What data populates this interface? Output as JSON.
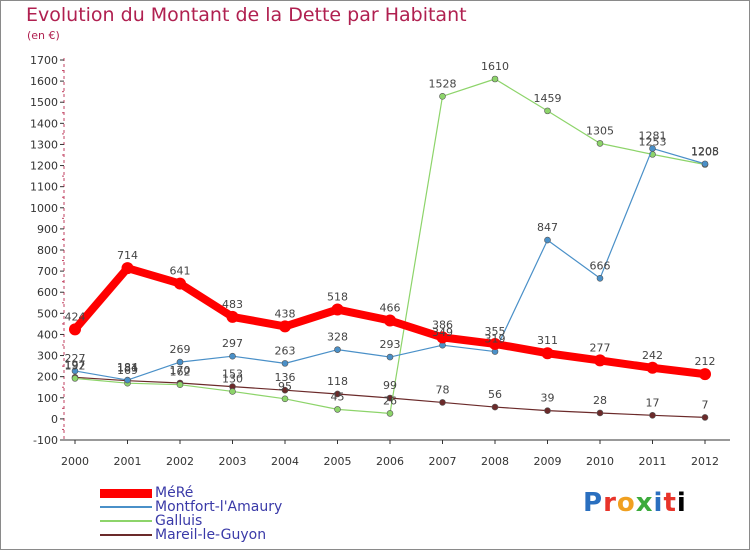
{
  "chart_data": {
    "type": "line",
    "title": "Evolution du Montant de la Dette par Habitant",
    "subtitle": "(en €)",
    "x": [
      "2000",
      "2001",
      "2002",
      "2003",
      "2004",
      "2005",
      "2006",
      "2007",
      "2008",
      "2009",
      "2010",
      "2011",
      "2012"
    ],
    "y_ticks": [
      "-100",
      "0",
      "100",
      "200",
      "300",
      "400",
      "500",
      "600",
      "700",
      "800",
      "900",
      "1000",
      "1100",
      "1200",
      "1300",
      "1400",
      "1500",
      "1600",
      "1700"
    ],
    "ylim": [
      -100,
      1700
    ],
    "grid": false,
    "legend_placement": "bottom-left",
    "series": [
      {
        "name": "MéRé",
        "color": "#ff0000",
        "values": [
          424,
          714,
          641,
          483,
          438,
          518,
          466,
          386,
          355,
          311,
          277,
          242,
          212
        ],
        "labels": [
          "424",
          "714",
          "641",
          "483",
          "438",
          "518",
          "466",
          "386",
          "355",
          "311",
          "277",
          "242",
          "212"
        ]
      },
      {
        "name": "Montfort-l'Amaury",
        "color": "#4a90c8",
        "values": [
          227,
          184,
          269,
          297,
          263,
          328,
          293,
          349,
          319,
          847,
          666,
          1281,
          1208
        ],
        "labels": [
          "227",
          "184",
          "269",
          "297",
          "263",
          "328",
          "293",
          "349",
          "319",
          "847",
          "666",
          "1281",
          "1208"
        ]
      },
      {
        "name": "Galluis",
        "color": "#8dd46a",
        "values": [
          192,
          169,
          162,
          130,
          95,
          45,
          26,
          1528,
          1610,
          1459,
          1305,
          1253,
          1205
        ],
        "labels": [
          "192",
          "169",
          "162",
          "130",
          "95",
          "45",
          "26",
          "1528",
          "1610",
          "1459",
          "1305",
          "1253",
          "1205"
        ]
      },
      {
        "name": "Mareil-le-Guyon",
        "color": "#6b2a2a",
        "values": [
          197,
          181,
          170,
          153,
          136,
          118,
          99,
          78,
          56,
          39,
          28,
          17,
          7
        ],
        "labels": [
          "197",
          "181",
          "170",
          "153",
          "136",
          "118",
          "99",
          "78",
          "56",
          "39",
          "28",
          "17",
          "7"
        ]
      }
    ]
  },
  "legend": {
    "items": [
      "MéRé",
      "Montfort-l'Amaury",
      "Galluis",
      "Mareil-le-Guyon"
    ]
  },
  "logo": [
    "P",
    "r",
    "o",
    "x",
    "i",
    "t",
    "i"
  ]
}
